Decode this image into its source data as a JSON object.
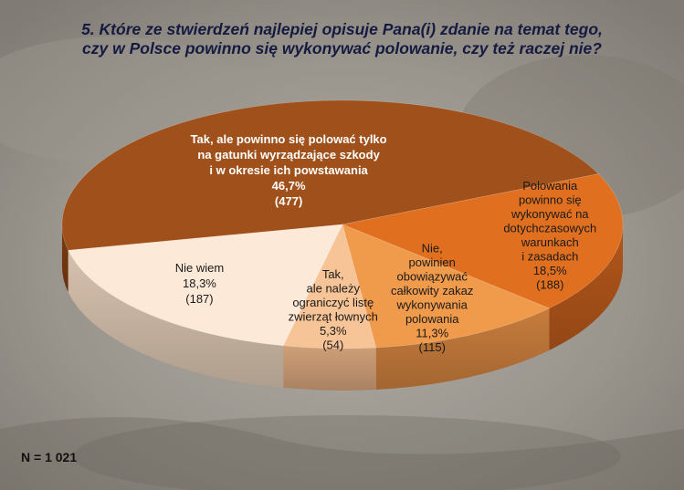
{
  "chart_data": {
    "type": "pie",
    "title_lines": [
      "5. Które ze stwierdzeń najlepiej opisuje Pana(i) zdanie na temat tego,",
      "czy w Polsce powinno się wykonywać polowanie, czy też raczej nie?"
    ],
    "slices": [
      {
        "label_lines": [
          "Tak, ale powinno się polować tylko",
          "na gatunki wyrządzające szkody",
          "i w okresie ich powstawania"
        ],
        "percent": 46.7,
        "percent_text": "46,7%",
        "count": 477,
        "count_text": "(477)",
        "color": "#a0501a",
        "side_color": "#7c3b10",
        "text_color": "#ffffff"
      },
      {
        "label_lines": [
          "Polowania",
          "powinno się",
          "wykonywać na",
          "dotychczasowych",
          "warunkach",
          "i zasadach"
        ],
        "percent": 18.5,
        "percent_text": "18,5%",
        "count": 188,
        "count_text": "(188)",
        "color": "#e0701f",
        "side_color": "#b3561a",
        "text_color": "#1a1a1a"
      },
      {
        "label_lines": [
          "Nie,",
          "powinien",
          "obowiązywać",
          "całkowity zakaz",
          "wykonywania",
          "polowania"
        ],
        "percent": 11.3,
        "percent_text": "11,3%",
        "count": 115,
        "count_text": "(115)",
        "color": "#f09a4c",
        "side_color": "#c77c3c",
        "text_color": "#1a1a1a"
      },
      {
        "label_lines": [
          "Tak,",
          "ale należy",
          "ograniczyć listę",
          "zwierząt łownych"
        ],
        "percent": 5.3,
        "percent_text": "5,3%",
        "count": 54,
        "count_text": "(54)",
        "color": "#f7c497",
        "side_color": "#cf9f78",
        "text_color": "#1a1a1a"
      },
      {
        "label_lines": [
          "Nie wiem"
        ],
        "percent": 18.3,
        "percent_text": "18,3%",
        "count": 187,
        "count_text": "(187)",
        "color": "#fce9d8",
        "side_color": "#d6c1ad",
        "text_color": "#1a1a1a"
      }
    ],
    "n_text": "N = 1 021"
  }
}
